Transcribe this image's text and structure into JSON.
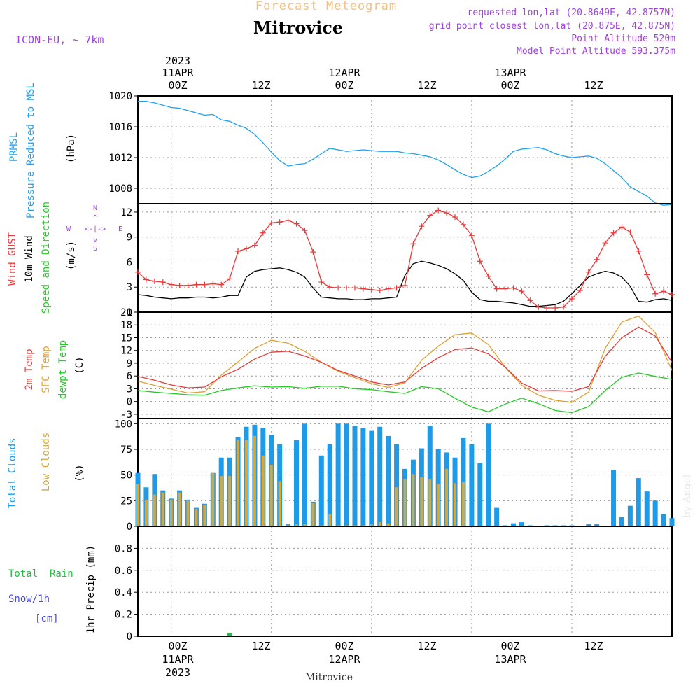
{
  "header": {
    "top_title": "Forecast Meteogram",
    "location": "Mitrovice",
    "model": "ICON-EU, ~ 7km",
    "requested": "requested lon,lat (20.8649E, 42.8757N)",
    "grid_point": "grid point closest lon,lat (20.875E, 42.875N)",
    "point_altitude": "Point Altitude 520m",
    "model_altitude": "Model Point Altitude 593.375m",
    "watermark": "by Angel",
    "footer_location": "Mitrovice"
  },
  "colors": {
    "pressure": "#1ea0f0",
    "gust": "#e83a3a",
    "wind": "#000000",
    "temp2m": "#e83a3a",
    "sfc": "#e0a030",
    "dewpt": "#22cc22",
    "total_clouds": "#1e9be8",
    "low_clouds": "#d4a840",
    "rain": "#22bb44",
    "snow": "#4848e0",
    "direction_label": "#a040e0"
  },
  "chart_data": [
    {
      "type": "line",
      "id": "pressure",
      "labels": [
        "PRMSL",
        "Pressure Reduced to MSL"
      ],
      "unit": "(hPa)",
      "ylim": [
        1006,
        1020
      ],
      "yticks": [
        1008,
        1012,
        1016,
        1020
      ],
      "x_top_ticks": [
        "00Z",
        "12Z",
        "00Z",
        "12Z",
        "00Z",
        "12Z"
      ],
      "x_top_dates": [
        "11APR",
        "12APR",
        "13APR"
      ],
      "x_top_year": "2023",
      "x_range_hours": [
        -4,
        60
      ],
      "series": [
        {
          "x": [
            -4,
            -3,
            -2,
            -1,
            0,
            1,
            2,
            3,
            4,
            5,
            6,
            7,
            8,
            9,
            10,
            11,
            12,
            13,
            14,
            15,
            16,
            17,
            18,
            19,
            20,
            21,
            22,
            23,
            24,
            25,
            26,
            27,
            28,
            29,
            30,
            31,
            32,
            33,
            34,
            35,
            36,
            37,
            38,
            39,
            40,
            41,
            42,
            43,
            44,
            45,
            46,
            47,
            48,
            49,
            50,
            51,
            52,
            53,
            54,
            55,
            56,
            57,
            58,
            59,
            60
          ],
          "values": [
            1019.3,
            1019.3,
            1019.1,
            1018.8,
            1018.5,
            1018.4,
            1018.1,
            1017.8,
            1017.5,
            1017.6,
            1016.9,
            1016.7,
            1016.2,
            1015.8,
            1015.0,
            1013.9,
            1012.7,
            1011.6,
            1010.9,
            1011.1,
            1011.2,
            1011.8,
            1012.5,
            1013.2,
            1013.0,
            1012.8,
            1012.9,
            1013.0,
            1012.9,
            1012.8,
            1012.8,
            1012.8,
            1012.6,
            1012.5,
            1012.3,
            1012.1,
            1011.7,
            1011.1,
            1010.4,
            1009.8,
            1009.4,
            1009.6,
            1010.2,
            1010.9,
            1011.8,
            1012.8,
            1013.1,
            1013.2,
            1013.3,
            1013.0,
            1012.5,
            1012.2,
            1012.0,
            1012.1,
            1012.2,
            1011.9,
            1011.2,
            1010.3,
            1009.4,
            1008.2,
            1007.6,
            1007.0,
            1006.1,
            1005.8,
            1005.9
          ]
        }
      ]
    },
    {
      "type": "line",
      "id": "wind",
      "labels": [
        "Wind GUST",
        "10m Wind",
        "Speed and Direction"
      ],
      "unit": "(m/s)",
      "compass": [
        "N",
        "E",
        "S",
        "W"
      ],
      "ylim": [
        0,
        13
      ],
      "yticks": [
        0,
        3,
        6,
        9,
        12
      ],
      "series": [
        {
          "name": "Wind GUST",
          "x": [
            -4,
            -3,
            -2,
            -1,
            0,
            1,
            2,
            3,
            4,
            5,
            6,
            7,
            8,
            9,
            10,
            11,
            12,
            13,
            14,
            15,
            16,
            17,
            18,
            19,
            20,
            21,
            22,
            23,
            24,
            25,
            26,
            27,
            28,
            29,
            30,
            31,
            32,
            33,
            34,
            35,
            36,
            37,
            38,
            39,
            40,
            41,
            42,
            43,
            44,
            45,
            46,
            47,
            48,
            49,
            50,
            51,
            52,
            53,
            54,
            55,
            56,
            57,
            58,
            59,
            60
          ],
          "values": [
            4.8,
            3.9,
            3.7,
            3.6,
            3.3,
            3.2,
            3.2,
            3.3,
            3.3,
            3.4,
            3.3,
            4.0,
            7.3,
            7.6,
            8.0,
            9.5,
            10.7,
            10.8,
            11.0,
            10.6,
            9.8,
            7.2,
            3.6,
            3.0,
            2.9,
            2.9,
            2.9,
            2.8,
            2.7,
            2.6,
            2.8,
            2.9,
            3.2,
            8.2,
            10.3,
            11.6,
            12.2,
            11.9,
            11.4,
            10.5,
            9.2,
            6.1,
            4.3,
            2.8,
            2.8,
            2.9,
            2.5,
            1.4,
            0.6,
            0.5,
            0.5,
            0.6,
            1.6,
            2.6,
            4.8,
            6.3,
            8.3,
            9.5,
            10.2,
            9.6,
            7.3,
            4.5,
            2.2,
            2.5,
            2.1
          ]
        },
        {
          "name": "10m Wind",
          "x": [
            -4,
            -3,
            -2,
            -1,
            0,
            1,
            2,
            3,
            4,
            5,
            6,
            7,
            8,
            9,
            10,
            11,
            12,
            13,
            14,
            15,
            16,
            17,
            18,
            19,
            20,
            21,
            22,
            23,
            24,
            25,
            26,
            27,
            28,
            29,
            30,
            31,
            32,
            33,
            34,
            35,
            36,
            37,
            38,
            39,
            40,
            41,
            42,
            43,
            44,
            45,
            46,
            47,
            48,
            49,
            50,
            51,
            52,
            53,
            54,
            55,
            56,
            57,
            58,
            59,
            60
          ],
          "values": [
            2.1,
            2.0,
            1.8,
            1.7,
            1.6,
            1.7,
            1.7,
            1.8,
            1.8,
            1.7,
            1.8,
            2.0,
            2.0,
            4.2,
            4.9,
            5.1,
            5.2,
            5.3,
            5.1,
            4.8,
            4.2,
            2.9,
            1.8,
            1.7,
            1.6,
            1.6,
            1.5,
            1.5,
            1.6,
            1.6,
            1.7,
            1.8,
            4.4,
            5.8,
            6.1,
            5.9,
            5.6,
            5.2,
            4.6,
            3.8,
            2.4,
            1.5,
            1.3,
            1.3,
            1.2,
            1.1,
            0.9,
            0.7,
            0.7,
            0.8,
            0.9,
            1.3,
            2.2,
            3.2,
            4.2,
            4.6,
            4.9,
            4.7,
            4.2,
            3.1,
            1.3,
            1.2,
            1.5,
            1.6,
            1.4
          ]
        }
      ]
    },
    {
      "type": "line",
      "id": "temperature",
      "labels": [
        "2m Temp",
        "SFC Temp",
        "dewpt Temp"
      ],
      "unit": "(C)",
      "ylim": [
        -4,
        21
      ],
      "yticks": [
        -3,
        0,
        3,
        6,
        9,
        12,
        15,
        18,
        21
      ],
      "series": [
        {
          "name": "2m Temp",
          "x": [
            -4,
            -2,
            0,
            2,
            4,
            6,
            8,
            10,
            12,
            14,
            16,
            18,
            20,
            22,
            24,
            26,
            28,
            30,
            32,
            34,
            36,
            38,
            40,
            42,
            44,
            46,
            48,
            50,
            52,
            54,
            56,
            58,
            60
          ],
          "values": [
            5.9,
            5.0,
            3.9,
            3.2,
            3.4,
            5.8,
            7.6,
            10.0,
            11.6,
            11.8,
            10.7,
            9.2,
            7.3,
            6.0,
            4.6,
            3.9,
            4.6,
            7.8,
            10.3,
            12.2,
            12.6,
            11.2,
            8.1,
            4.3,
            2.5,
            2.6,
            2.4,
            3.5,
            10.6,
            15.0,
            17.5,
            15.4,
            9.2
          ]
        },
        {
          "name": "SFC Temp",
          "x": [
            -4,
            -2,
            0,
            2,
            4,
            6,
            8,
            10,
            12,
            14,
            16,
            18,
            20,
            22,
            24,
            26,
            28,
            30,
            32,
            34,
            36,
            38,
            40,
            42,
            44,
            46,
            48,
            50,
            52,
            54,
            56,
            58,
            60
          ],
          "values": [
            4.8,
            3.8,
            2.9,
            2.0,
            2.3,
            6.2,
            9.3,
            12.5,
            14.4,
            13.7,
            11.8,
            9.2,
            7.1,
            5.6,
            4.2,
            3.3,
            4.4,
            9.7,
            13.0,
            15.7,
            16.1,
            13.4,
            8.1,
            3.8,
            1.5,
            0.3,
            -0.2,
            2.2,
            12.5,
            18.7,
            20.1,
            16.2,
            7.3
          ]
        },
        {
          "name": "dewpt Temp",
          "x": [
            -4,
            -2,
            0,
            2,
            4,
            6,
            8,
            10,
            12,
            14,
            16,
            18,
            20,
            22,
            24,
            26,
            28,
            30,
            32,
            34,
            36,
            38,
            40,
            42,
            44,
            46,
            48,
            50,
            52,
            54,
            56,
            58,
            60
          ],
          "values": [
            2.6,
            2.2,
            1.9,
            1.6,
            1.5,
            2.6,
            3.2,
            3.7,
            3.4,
            3.5,
            3.1,
            3.6,
            3.6,
            3.0,
            2.8,
            2.3,
            1.9,
            3.5,
            3.0,
            0.8,
            -1.3,
            -2.4,
            -0.6,
            0.8,
            -0.5,
            -2.1,
            -2.6,
            -1.2,
            2.6,
            5.7,
            6.7,
            5.9,
            5.2
          ]
        }
      ]
    },
    {
      "type": "bar",
      "id": "clouds",
      "labels": [
        "Total Clouds",
        "Low Clouds"
      ],
      "unit": "(%)",
      "ylim": [
        0,
        105
      ],
      "yticks": [
        0,
        25,
        50,
        75,
        100
      ],
      "x": [
        -4,
        -3,
        -2,
        -1,
        0,
        1,
        2,
        3,
        4,
        5,
        6,
        7,
        8,
        9,
        10,
        11,
        12,
        13,
        14,
        15,
        16,
        17,
        18,
        19,
        20,
        21,
        22,
        23,
        24,
        25,
        26,
        27,
        28,
        29,
        30,
        31,
        32,
        33,
        34,
        35,
        36,
        37,
        38,
        39,
        40,
        41,
        42,
        43,
        44,
        45,
        46,
        47,
        48,
        49,
        50,
        51,
        52,
        53,
        54,
        55,
        56,
        57,
        58,
        59,
        60
      ],
      "series": [
        {
          "name": "Total Clouds",
          "values": [
            52,
            38,
            51,
            35,
            27,
            35,
            26,
            18,
            22,
            52,
            67,
            67,
            87,
            97,
            99,
            96,
            89,
            80,
            2,
            84,
            100,
            24,
            69,
            80,
            100,
            100,
            98,
            96,
            93,
            97,
            88,
            80,
            56,
            65,
            76,
            98,
            75,
            72,
            67,
            86,
            80,
            62,
            100,
            18,
            1,
            3,
            4,
            1,
            0,
            1,
            1,
            1,
            1,
            0,
            2,
            2,
            0,
            55,
            9,
            20,
            47,
            34,
            25,
            12,
            8
          ]
        },
        {
          "name": "Low Clouds",
          "values": [
            41,
            26,
            31,
            33,
            26,
            33,
            25,
            17,
            21,
            52,
            49,
            49,
            84,
            84,
            88,
            69,
            60,
            44,
            1,
            2,
            2,
            23,
            1,
            12,
            1,
            1,
            1,
            1,
            2,
            4,
            3,
            38,
            46,
            51,
            48,
            46,
            41,
            56,
            42,
            43,
            0,
            0,
            0,
            0,
            0,
            0,
            0,
            0,
            0,
            0,
            0,
            0,
            0,
            0,
            0,
            0,
            0,
            0,
            0,
            0,
            0,
            0,
            0,
            0,
            0
          ]
        }
      ]
    },
    {
      "type": "bar",
      "id": "precip",
      "labels": [
        "Total  Rain",
        "Snow/1h",
        "[cm]"
      ],
      "unit": "1hr Precip (mm)",
      "ylim": [
        0,
        1.0
      ],
      "yticks": [
        0,
        0.2,
        0.4,
        0.6,
        0.8
      ],
      "x_bottom_ticks": [
        "00Z",
        "12Z",
        "00Z",
        "12Z",
        "00Z",
        "12Z"
      ],
      "x_bottom_dates": [
        "11APR",
        "12APR",
        "13APR"
      ],
      "x_bottom_year": "2023",
      "series": [
        {
          "name": "Total Rain",
          "x": [
            7
          ],
          "values": [
            0.03
          ]
        }
      ]
    }
  ]
}
